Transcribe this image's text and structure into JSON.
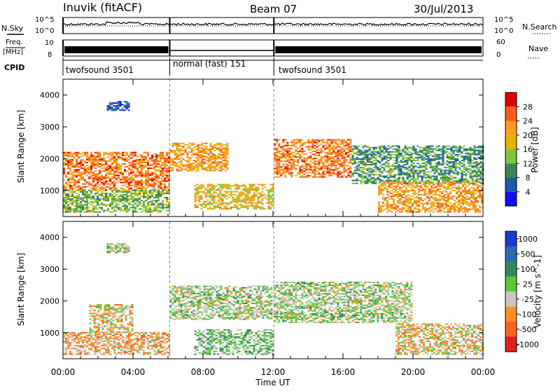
{
  "header": {
    "station": "Inuvik  (fitACF)",
    "beam": "Beam 07",
    "date": "30/Jul/2013"
  },
  "left_labels": {
    "nsky": "N.Sky",
    "freq": "Freq.",
    "freq_unit": "[MHz]",
    "cpid": "CPID"
  },
  "right_labels": {
    "nsearch": "N.Search",
    "nave": "Nave"
  },
  "noise_axis": {
    "left_ticks": [
      "10^5",
      "10^0"
    ],
    "right_ticks": [
      "10^5",
      "10^0"
    ]
  },
  "freq_axis": {
    "left_ticks": [
      "10",
      "8"
    ],
    "right_ticks": [
      "60",
      "0"
    ]
  },
  "cpid_segments": [
    {
      "label": "twofsound 3501",
      "start_h": 0,
      "end_h": 6.1
    },
    {
      "label": "normal (fast) 151",
      "start_h": 6.1,
      "end_h": 12.05
    },
    {
      "label": "twofsound 3501",
      "start_h": 12.05,
      "end_h": 24
    }
  ],
  "time_axis": {
    "label": "Time UT",
    "ticks": [
      "00:00",
      "04:00",
      "08:00",
      "12:00",
      "16:00",
      "20:00",
      "00:00"
    ]
  },
  "power_colorbar": {
    "label": "Power [dB]",
    "ticks": [
      "28",
      "24",
      "20",
      "16",
      "12",
      "8",
      "4"
    ],
    "colors": [
      "#e00000",
      "#ff5a1e",
      "#ff9a1e",
      "#e6b400",
      "#7ac83a",
      "#3a8a50",
      "#1a5aa8",
      "#1010ff"
    ]
  },
  "velocity_colorbar": {
    "label": "Velocity [m s^-1]",
    "ticks": [
      "1000",
      "500",
      "100",
      "25",
      "-25",
      "-100",
      "-500",
      "-1000"
    ],
    "colors": [
      "#1a3ad0",
      "#2a6ab0",
      "#2e8a5a",
      "#5ac83a",
      "#c8c8c0",
      "#ff9020",
      "#ff6020",
      "#e02020"
    ]
  },
  "chart_data": [
    {
      "type": "heatmap",
      "title": "Power",
      "ylabel": "Slant Range [km]",
      "xlabel": "",
      "ylim": [
        180,
        4500
      ],
      "y_ticks": [
        1000,
        2000,
        3000,
        4000
      ],
      "xlim_hours": [
        0,
        24
      ],
      "colorbar": "Power [dB]",
      "scale": [
        4,
        28
      ],
      "bands": [
        {
          "t0": 0,
          "t1": 6.1,
          "r0": 1000,
          "r1": 2200,
          "level": 22
        },
        {
          "t0": 0,
          "t1": 6.1,
          "r0": 300,
          "r1": 1000,
          "level": 14
        },
        {
          "t0": 2.5,
          "t1": 3.8,
          "r0": 3500,
          "r1": 3800,
          "level": 8
        },
        {
          "t0": 6.1,
          "t1": 9.5,
          "r0": 1600,
          "r1": 2500,
          "level": 20
        },
        {
          "t0": 7.5,
          "t1": 12,
          "r0": 400,
          "r1": 1200,
          "level": 18
        },
        {
          "t0": 12.05,
          "t1": 16.5,
          "r0": 1400,
          "r1": 2600,
          "level": 22
        },
        {
          "t0": 16.5,
          "t1": 24,
          "r0": 1200,
          "r1": 2400,
          "level": 12
        },
        {
          "t0": 18,
          "t1": 24,
          "r0": 300,
          "r1": 1300,
          "level": 20
        }
      ]
    },
    {
      "type": "heatmap",
      "title": "Velocity",
      "ylabel": "Slant Range [km]",
      "xlabel": "Time UT",
      "ylim": [
        180,
        4500
      ],
      "y_ticks": [
        1000,
        2000,
        3000,
        4000
      ],
      "xlim_hours": [
        0,
        24
      ],
      "colorbar": "Velocity [m s^-1]",
      "scale": [
        -1000,
        1000
      ],
      "bands": [
        {
          "t0": 0,
          "t1": 6.1,
          "r0": 300,
          "r1": 1000,
          "level": -300
        },
        {
          "t0": 1.5,
          "t1": 4,
          "r0": 1000,
          "r1": 1900,
          "level": -200
        },
        {
          "t0": 2.5,
          "t1": 3.8,
          "r0": 3500,
          "r1": 3800,
          "level": 0
        },
        {
          "t0": 6.1,
          "t1": 12,
          "r0": 1400,
          "r1": 2500,
          "level": 0
        },
        {
          "t0": 7.5,
          "t1": 12,
          "r0": 300,
          "r1": 1100,
          "level": 120
        },
        {
          "t0": 12.05,
          "t1": 20,
          "r0": 1300,
          "r1": 2600,
          "level": 0
        },
        {
          "t0": 19,
          "t1": 24,
          "r0": 300,
          "r1": 1300,
          "level": -200
        }
      ]
    }
  ]
}
